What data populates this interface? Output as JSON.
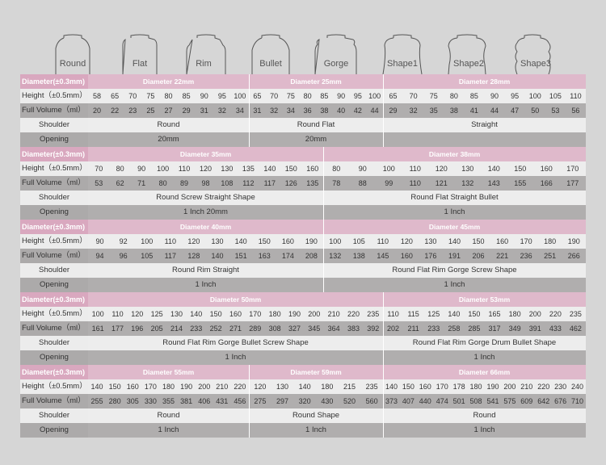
{
  "shapes": [
    "Round",
    "Flat",
    "Rim",
    "Bullet",
    "Gorge",
    "Shape1",
    "Shape2",
    "Shape3"
  ],
  "labels": {
    "diameter": "Diameter(±0.3mm)",
    "height": "Height（±0.5mm）",
    "volume": "Full Volume（ml）",
    "shoulder": "Shoulder",
    "opening": "Opening"
  },
  "sections": [
    {
      "groups": [
        {
          "title": "Diameter 22mm",
          "heights": [
            "58",
            "65",
            "70",
            "75",
            "80",
            "85",
            "90",
            "95",
            "100"
          ],
          "volumes": [
            "20",
            "22",
            "23",
            "25",
            "27",
            "29",
            "31",
            "32",
            "34"
          ],
          "shoulder": "Round",
          "opening": "20mm"
        },
        {
          "title": "Diameter 25mm",
          "heights": [
            "65",
            "70",
            "75",
            "80",
            "85",
            "90",
            "95",
            "100"
          ],
          "volumes": [
            "31",
            "32",
            "34",
            "36",
            "38",
            "40",
            "42",
            "44"
          ],
          "shoulder": "Round Flat",
          "opening": "20mm"
        },
        {
          "title": "Diameter 28mm",
          "heights": [
            "65",
            "70",
            "75",
            "80",
            "85",
            "90",
            "95",
            "100",
            "105",
            "110"
          ],
          "volumes": [
            "29",
            "32",
            "35",
            "38",
            "41",
            "44",
            "47",
            "50",
            "53",
            "56"
          ],
          "shoulder": "Straight",
          "opening": ""
        }
      ]
    },
    {
      "groups": [
        {
          "title": "Diameter 35mm",
          "heights": [
            "70",
            "80",
            "90",
            "100",
            "110",
            "120",
            "130",
            "135",
            "140",
            "150",
            "160"
          ],
          "volumes": [
            "53",
            "62",
            "71",
            "80",
            "89",
            "98",
            "108",
            "112",
            "117",
            "126",
            "135"
          ],
          "shoulder": "Round Screw Straight Shape",
          "opening": "1 Inch 20mm"
        },
        {
          "title": "Diameter 38mm",
          "heights": [
            "80",
            "90",
            "100",
            "110",
            "120",
            "130",
            "140",
            "150",
            "160",
            "170"
          ],
          "volumes": [
            "78",
            "88",
            "99",
            "110",
            "121",
            "132",
            "143",
            "155",
            "166",
            "177"
          ],
          "shoulder": "Round Flat Straight Bullet",
          "opening": "1 Inch"
        }
      ]
    },
    {
      "groups": [
        {
          "title": "Diameter 40mm",
          "heights": [
            "90",
            "92",
            "100",
            "110",
            "120",
            "130",
            "140",
            "150",
            "160",
            "190"
          ],
          "volumes": [
            "94",
            "96",
            "105",
            "117",
            "128",
            "140",
            "151",
            "163",
            "174",
            "208"
          ],
          "shoulder": "Round Rim Straight",
          "opening": "1 Inch"
        },
        {
          "title": "Diameter 45mm",
          "heights": [
            "100",
            "105",
            "110",
            "120",
            "130",
            "140",
            "150",
            "160",
            "170",
            "180",
            "190"
          ],
          "volumes": [
            "132",
            "138",
            "145",
            "160",
            "176",
            "191",
            "206",
            "221",
            "236",
            "251",
            "266"
          ],
          "shoulder": "Round Flat Rim Gorge Screw Shape",
          "opening": "1 Inch"
        }
      ]
    },
    {
      "groups": [
        {
          "title": "Diameter 50mm",
          "heights": [
            "100",
            "110",
            "120",
            "125",
            "130",
            "140",
            "150",
            "160",
            "170",
            "180",
            "190",
            "200",
            "210",
            "220",
            "235"
          ],
          "volumes": [
            "161",
            "177",
            "196",
            "205",
            "214",
            "233",
            "252",
            "271",
            "289",
            "308",
            "327",
            "345",
            "364",
            "383",
            "392"
          ],
          "shoulder": "Round Flat Rim Gorge Bullet Screw Shape",
          "opening": "1 Inch"
        },
        {
          "title": "Diameter 53mm",
          "heights": [
            "110",
            "115",
            "125",
            "140",
            "150",
            "165",
            "180",
            "200",
            "220",
            "235"
          ],
          "volumes": [
            "202",
            "211",
            "233",
            "258",
            "285",
            "317",
            "349",
            "391",
            "433",
            "462"
          ],
          "shoulder": "Round Flat Rim Gorge Drum Bullet Shape",
          "opening": "1 Inch"
        }
      ]
    },
    {
      "groups": [
        {
          "title": "Diameter 55mm",
          "heights": [
            "140",
            "150",
            "160",
            "170",
            "180",
            "190",
            "200",
            "210",
            "220"
          ],
          "volumes": [
            "255",
            "280",
            "305",
            "330",
            "355",
            "381",
            "406",
            "431",
            "456"
          ],
          "shoulder": "Round",
          "opening": "1 Inch"
        },
        {
          "title": "Diameter 59mm",
          "heights": [
            "120",
            "130",
            "140",
            "180",
            "215",
            "235"
          ],
          "volumes": [
            "275",
            "297",
            "320",
            "430",
            "520",
            "560"
          ],
          "shoulder": "Round Shape",
          "opening": "1 Inch"
        },
        {
          "title": "Diameter 66mm",
          "heights": [
            "140",
            "150",
            "160",
            "170",
            "178",
            "180",
            "190",
            "200",
            "210",
            "220",
            "230",
            "240"
          ],
          "volumes": [
            "373",
            "407",
            "440",
            "474",
            "501",
            "508",
            "541",
            "575",
            "609",
            "642",
            "676",
            "710"
          ],
          "shoulder": "Round",
          "opening": "1 Inch"
        }
      ]
    }
  ]
}
